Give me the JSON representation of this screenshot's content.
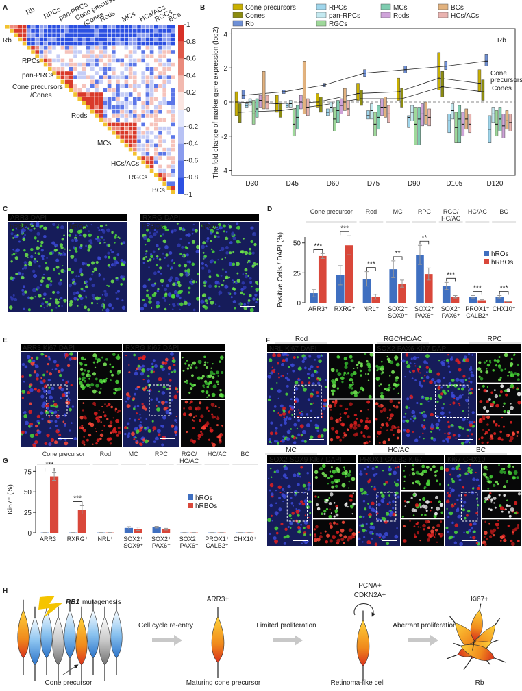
{
  "panel_letters": [
    "A",
    "B",
    "C",
    "D",
    "E",
    "F",
    "G",
    "H"
  ],
  "panel_a": {
    "row_labels": [
      {
        "text": "Rb",
        "color": "#e8331f"
      },
      {
        "text": "RPCs",
        "color": "#222222"
      },
      {
        "text": "pan-PRCs",
        "color": "#222222"
      },
      {
        "text": "Cone precursors",
        "color": "#e8331f"
      },
      {
        "text": "/Cones",
        "color": "#e8331f"
      },
      {
        "text": "Rods",
        "color": "#222222"
      },
      {
        "text": "MCs",
        "color": "#222222"
      },
      {
        "text": "HCs/ACs",
        "color": "#222222"
      },
      {
        "text": "RGCs",
        "color": "#222222"
      },
      {
        "text": "BCs",
        "color": "#222222"
      }
    ],
    "col_labels": [
      {
        "text": "Rb",
        "color": "#e8331f"
      },
      {
        "text": "RPCs",
        "color": "#222222"
      },
      {
        "text": "pan-PRCs",
        "color": "#222222"
      },
      {
        "text": "Cone precursors",
        "color": "#e8331f"
      },
      {
        "text": "/Cones",
        "color": "#e8331f"
      },
      {
        "text": "Rods",
        "color": "#222222"
      },
      {
        "text": "MCs",
        "color": "#222222"
      },
      {
        "text": "HCs/ACs",
        "color": "#222222"
      },
      {
        "text": "RGCs",
        "color": "#222222"
      },
      {
        "text": "BCs",
        "color": "#222222"
      }
    ],
    "colorbar_ticks": [
      1,
      0.8,
      0.6,
      0.4,
      0.2,
      0,
      -0.2,
      -0.4,
      -0.6,
      -0.8,
      -1
    ]
  },
  "chart_data": [
    {
      "type": "box",
      "ylabel": "The fold change of marker gene expression (log2)",
      "categories": [
        "D30",
        "D45",
        "D60",
        "D75",
        "D90",
        "D105",
        "D120"
      ],
      "ylim": [
        -4.3,
        4.3
      ],
      "yticks": [
        -4,
        -2,
        0,
        2,
        4
      ],
      "hline": 0,
      "series": [
        {
          "name": "Cone precursors",
          "color": "#c9b000",
          "line": true,
          "values": [
            0,
            -0.1,
            0,
            0.5,
            0.6,
            1.4,
            1.1
          ],
          "q1": [
            -0.8,
            -0.6,
            -0.3,
            0.1,
            0.1,
            0.7,
            0.6
          ],
          "q3": [
            0.6,
            0.4,
            0.5,
            1.1,
            1.4,
            2.9,
            1.9
          ]
        },
        {
          "name": "Cones",
          "color": "#8c8c10",
          "line": true,
          "values": [
            -0.6,
            -0.5,
            -0.2,
            0.2,
            0.2,
            0.9,
            0.6
          ],
          "q1": [
            -1.2,
            -0.9,
            -0.6,
            -0.2,
            -0.3,
            0.3,
            0.1
          ],
          "q3": [
            -0.1,
            -0.1,
            0.3,
            0.7,
            0.8,
            1.8,
            1.3
          ]
        },
        {
          "name": "Rb",
          "color": "#6d8fd6",
          "line": true,
          "values": [
            0.4,
            0.6,
            1.0,
            1.7,
            1.9,
            2.1,
            2.4
          ],
          "q1": [
            0.2,
            0.5,
            0.9,
            1.5,
            1.7,
            1.9,
            2.1
          ],
          "q3": [
            0.7,
            0.7,
            1.1,
            1.9,
            2.1,
            2.4,
            2.8
          ]
        },
        {
          "name": "RPCs",
          "color": "#9fd6ec",
          "values": [
            -0.2,
            -0.2,
            -0.6,
            -0.8,
            -0.9,
            -1.1,
            -1.6
          ],
          "q1": [
            -0.3,
            -0.3,
            -0.8,
            -1.0,
            -1.5,
            -1.8,
            -2.4
          ],
          "q3": [
            -0.1,
            -0.1,
            -0.4,
            -0.5,
            -0.8,
            -0.7,
            -0.8
          ]
        },
        {
          "name": "pan-RPCs",
          "color": "#c4e9f0",
          "values": [
            0,
            -0.1,
            -0.3,
            -0.5,
            -0.6,
            -0.5,
            -0.7
          ],
          "q1": [
            -0.2,
            -0.3,
            -0.6,
            -1.0,
            -1.1,
            -1.0,
            -1.2
          ],
          "q3": [
            0.2,
            0.1,
            0,
            -0.1,
            -0.2,
            -0.1,
            -0.3
          ]
        },
        {
          "name": "RGCs",
          "color": "#9ed89a",
          "values": [
            -0.7,
            -1.3,
            -1.0,
            -1.3,
            -1.3,
            -1.5,
            -1.3
          ],
          "q1": [
            -1.3,
            -2.0,
            -1.7,
            -2.0,
            -2.5,
            -2.4,
            -2.0
          ],
          "q3": [
            0.1,
            -0.4,
            -0.3,
            -0.6,
            -0.3,
            -0.6,
            -0.5
          ]
        },
        {
          "name": "MCs",
          "color": "#7fcdb0",
          "values": [
            -0.4,
            -0.9,
            -0.5,
            -0.9,
            -1.0,
            -1.0,
            -1.0
          ],
          "q1": [
            -0.9,
            -1.6,
            -1.2,
            -1.6,
            -2.5,
            -2.4,
            -1.7
          ],
          "q3": [
            0.2,
            -0.2,
            0.1,
            -0.2,
            -0.3,
            -0.2,
            -0.3
          ]
        },
        {
          "name": "Rods",
          "color": "#cfa3d9",
          "values": [
            0.1,
            0,
            -0.2,
            -0.3,
            -0.7,
            -1.3,
            -1.4
          ],
          "q1": [
            -0.3,
            -0.4,
            -0.7,
            -0.8,
            -1.4,
            -2.0,
            -2.1
          ],
          "q3": [
            0.4,
            0.4,
            0.2,
            0.2,
            -0.1,
            -0.6,
            -0.7
          ]
        },
        {
          "name": "BCs",
          "color": "#e2b27e",
          "values": [
            0.3,
            0.3,
            0,
            -0.3,
            -0.8,
            -1.0,
            -1.1
          ],
          "q1": [
            -0.4,
            -0.7,
            -0.5,
            -0.9,
            -1.3,
            -1.6,
            -1.6
          ],
          "q3": [
            1.8,
            2.4,
            0.8,
            0.3,
            0,
            -0.4,
            -0.5
          ]
        },
        {
          "name": "HCs/ACs",
          "color": "#e9b3b0",
          "values": [
            0,
            -0.3,
            -0.4,
            -0.7,
            -0.9,
            -1.3,
            -1.2
          ],
          "q1": [
            -0.4,
            -0.8,
            -0.8,
            -1.2,
            -1.4,
            -1.8,
            -1.7
          ],
          "q3": [
            0.4,
            0.2,
            0.1,
            -0.2,
            -0.4,
            -0.7,
            -0.7
          ]
        }
      ],
      "annotations": [
        {
          "text": "Rb",
          "color": "#5a7fd0"
        },
        {
          "text": "Cone",
          "color": "#c9a000"
        },
        {
          "text": "precursors",
          "color": "#c9a000"
        },
        {
          "text": "Cones",
          "color": "#8cb020"
        }
      ]
    },
    {
      "type": "bar",
      "ylabel": "Positive Cells / DAPI (%)",
      "categories": [
        "ARR3⁺",
        "RXRG⁺",
        "NRL⁺",
        "SOX2⁺ SOX9⁺",
        "SOX2⁺ PAX6⁺",
        "SOX2⁻ PAX6⁺",
        "PROX1⁺ CALB2⁺",
        "CHX10⁺"
      ],
      "groups": [
        "Cone precursor",
        "Rod",
        "MC",
        "RPC",
        "RGC/ HC/AC",
        "HC/AC",
        "BC"
      ],
      "series": [
        {
          "name": "hROs",
          "color": "#3f6fc0",
          "values": [
            8,
            23,
            20,
            28,
            40,
            14,
            5,
            5
          ],
          "errors": [
            3,
            8,
            6,
            7,
            8,
            3,
            1,
            1
          ]
        },
        {
          "name": "hRBOs",
          "color": "#d9473a",
          "values": [
            39,
            48,
            5,
            16,
            24,
            5,
            2,
            1
          ],
          "errors": [
            2,
            8,
            2,
            3,
            5,
            1,
            0.5,
            0.3
          ]
        }
      ],
      "significance": [
        "***",
        "***",
        "***",
        "**",
        "**",
        "***",
        "***",
        "***"
      ],
      "ylim": [
        0,
        55
      ],
      "yticks": [
        0,
        25,
        50
      ],
      "legend": "upper right"
    },
    {
      "type": "bar",
      "ylabel": "Ki67⁺ (%)",
      "categories": [
        "ARR3⁺",
        "RXRG⁺",
        "NRL⁺",
        "SOX2⁺ SOX9⁺",
        "SOX2⁺ PAX6⁺",
        "SOX2⁻ PAX6⁺",
        "PROX1⁺ CALB2⁺",
        "CHX10⁺"
      ],
      "groups": [
        "Cone precursor",
        "Rod",
        "MC",
        "RPC",
        "RGC/ HC/AC",
        "HC/AC",
        "BC"
      ],
      "series": [
        {
          "name": "hROs",
          "color": "#3f6fc0",
          "values": [
            0.3,
            0.3,
            0.3,
            6,
            7,
            0.3,
            0.3,
            0.3
          ],
          "errors": [
            0,
            0,
            0,
            1.5,
            1,
            0,
            0,
            0
          ]
        },
        {
          "name": "hRBOs",
          "color": "#d9473a",
          "values": [
            69,
            28,
            0.3,
            5,
            4.5,
            0.3,
            0.3,
            0.3
          ],
          "errors": [
            5,
            5,
            0,
            2,
            1,
            0,
            0,
            0
          ]
        }
      ],
      "significance": [
        "***",
        "***",
        null,
        null,
        null,
        null,
        null,
        null
      ],
      "ylim": [
        0,
        82
      ],
      "yticks": [
        0,
        25,
        50,
        75
      ],
      "legend": "upper right"
    }
  ],
  "panel_c": {
    "groups": [
      {
        "channels": [
          {
            "text": "ARR3",
            "color": "#4cd93a"
          },
          {
            "text": "DAPI",
            "color": "#6a7cff"
          }
        ],
        "samples": [
          "hRBOs",
          "hROs"
        ]
      },
      {
        "channels": [
          {
            "text": "RXRG",
            "color": "#4cd93a"
          },
          {
            "text": "DAPI",
            "color": "#6a7cff"
          }
        ],
        "samples": [
          "hRBOs",
          "hROs"
        ]
      }
    ]
  },
  "panel_e": {
    "groups": [
      {
        "channels": [
          {
            "text": "ARR3",
            "color": "#4cd93a"
          },
          {
            "text": "Ki67",
            "color": "#ff2a2a"
          },
          {
            "text": "DAPI",
            "color": "#6a7cff"
          }
        ]
      },
      {
        "channels": [
          {
            "text": "RXRG",
            "color": "#4cd93a"
          },
          {
            "text": "Ki67",
            "color": "#ff2a2a"
          },
          {
            "text": "DAPI",
            "color": "#6a7cff"
          }
        ]
      }
    ]
  },
  "panel_f": {
    "titles": [
      "Rod",
      "RGC/HC/AC",
      "RPC",
      "MC",
      "HC/AC",
      "BC"
    ],
    "panels": [
      {
        "channels": [
          {
            "text": "NRL",
            "color": "#4cd93a"
          },
          {
            "text": "Ki67",
            "color": "#ff2a2a"
          },
          {
            "text": "DAPI",
            "color": "#6a7cff"
          }
        ]
      },
      {
        "channels": [
          {
            "text": "SOX2",
            "color": "#4cd93a"
          },
          {
            "text": "PAX6",
            "color": "#ffffff"
          },
          {
            "text": "Ki67",
            "color": "#ff2a2a"
          },
          {
            "text": "DAPI",
            "color": "#6a7cff"
          }
        ]
      },
      {
        "channels": [
          {
            "text": "SOX2",
            "color": "#4cd93a"
          },
          {
            "text": "SOX9",
            "color": "#ffffff"
          },
          {
            "text": "Ki67",
            "color": "#ff2a2a"
          },
          {
            "text": "DAPI",
            "color": "#6a7cff"
          }
        ]
      },
      {
        "channels": [
          {
            "text": "PROX1",
            "color": "#4cd93a"
          },
          {
            "text": "CALB2",
            "color": "#ffffff"
          },
          {
            "text": "Ki67",
            "color": "#ff2a2a"
          }
        ]
      },
      {
        "channels": [
          {
            "text": "Ki67",
            "color": "#4cd93a"
          },
          {
            "text": "CHX10",
            "color": "#ff2a2a"
          }
        ]
      }
    ]
  },
  "panel_h": {
    "gene": "RB1",
    "event": "mutagenesis",
    "steps": [
      "Cell cycle re-entry",
      "Limited proliferation",
      "Aberrant proliferation"
    ],
    "markers": [
      "ARR3+",
      "PCNA+",
      "CDKN2A+",
      "Ki67+"
    ],
    "stages": [
      "Cone precursor",
      "Maturing cone precursor",
      "Retinoma-like cell",
      "Rb"
    ]
  }
}
